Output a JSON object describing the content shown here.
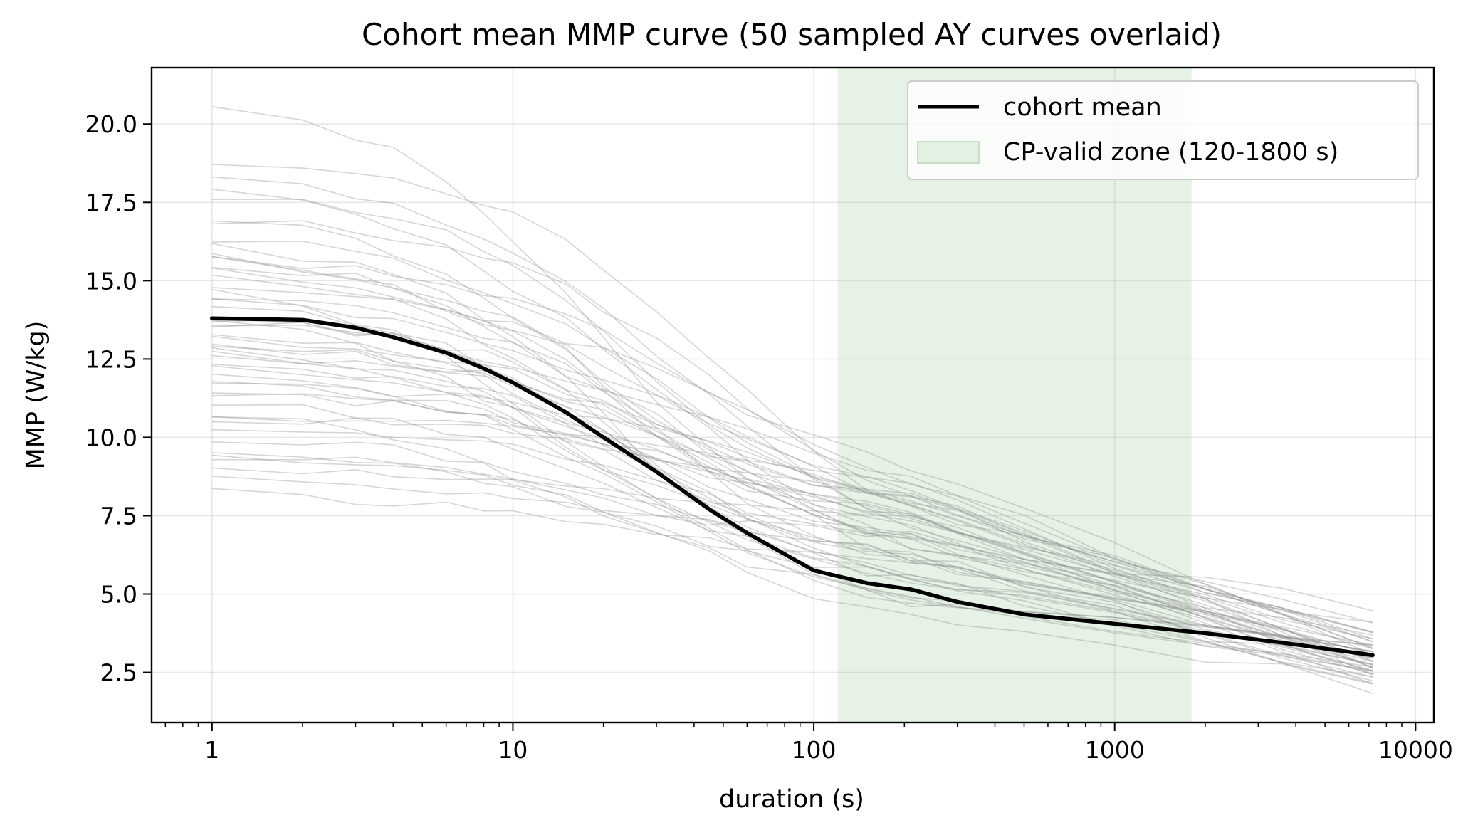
{
  "chart_data": {
    "type": "line",
    "title": "Cohort mean MMP curve (50 sampled AY curves overlaid)",
    "xlabel": "duration (s)",
    "ylabel": "MMP (W/kg)",
    "x_scale": "log",
    "xlim": [
      0.63,
      11500
    ],
    "ylim": [
      0.9,
      21.8
    ],
    "x_ticks": [
      1,
      10,
      100,
      1000,
      10000
    ],
    "x_tick_labels": [
      "1",
      "10",
      "100",
      "1000",
      "10000"
    ],
    "y_ticks": [
      2.5,
      5.0,
      7.5,
      10.0,
      12.5,
      15.0,
      17.5,
      20.0
    ],
    "y_tick_labels": [
      "2.5",
      "5.0",
      "7.5",
      "10.0",
      "12.5",
      "15.0",
      "17.5",
      "20.0"
    ],
    "grid": true,
    "legend_position": "top-right",
    "durations": [
      1,
      2,
      3,
      4,
      6,
      8,
      10,
      15,
      20,
      30,
      45,
      60,
      100,
      150,
      210,
      300,
      500,
      1000,
      2000,
      3600,
      7200
    ],
    "cohort_mean": {
      "name": "cohort mean",
      "color": "#000000",
      "values": [
        13.8,
        13.75,
        13.5,
        13.2,
        12.7,
        12.2,
        11.75,
        10.8,
        10.0,
        8.9,
        7.7,
        6.95,
        5.75,
        5.35,
        5.15,
        4.75,
        4.35,
        4.05,
        3.75,
        3.45,
        3.05
      ]
    },
    "shaded_region": {
      "label": "CP-valid zone (120-1800 s)",
      "x_start": 120,
      "x_end": 1800,
      "color": "#d4ead3"
    },
    "sample_curves": {
      "count": 50,
      "color": "#8a8a8a",
      "start_values": [
        20.9,
        18.9,
        18.7,
        18.6,
        17.8,
        17.3,
        17.1,
        16.7,
        16.5,
        16.2,
        16.0,
        15.8,
        15.6,
        15.4,
        15.3,
        15.1,
        14.9,
        14.7,
        14.5,
        14.4,
        14.2,
        14.0,
        13.9,
        13.7,
        13.6,
        13.4,
        13.3,
        13.1,
        12.9,
        12.8,
        12.6,
        12.4,
        12.3,
        12.1,
        11.9,
        11.8,
        11.6,
        11.4,
        11.2,
        11.0,
        10.8,
        10.6,
        10.4,
        10.1,
        9.9,
        9.6,
        9.3,
        8.9,
        8.7,
        8.4
      ],
      "end_values": [
        4.6,
        4.1,
        4.0,
        3.9,
        3.8,
        3.7,
        3.7,
        3.6,
        3.6,
        3.5,
        3.5,
        3.4,
        3.4,
        3.4,
        3.3,
        3.3,
        3.3,
        3.2,
        3.2,
        3.2,
        3.1,
        3.1,
        3.1,
        3.0,
        3.0,
        3.0,
        2.9,
        2.9,
        2.9,
        2.8,
        2.8,
        2.8,
        2.7,
        2.7,
        2.7,
        2.6,
        2.6,
        2.6,
        2.5,
        2.5,
        2.5,
        2.4,
        2.4,
        2.3,
        2.3,
        2.2,
        2.2,
        2.1,
        2.0,
        1.9
      ]
    }
  }
}
